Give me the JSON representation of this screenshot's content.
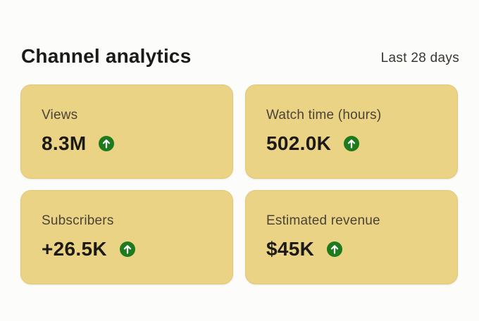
{
  "header": {
    "title": "Channel analytics",
    "date_range": "Last 28 days"
  },
  "metrics": [
    {
      "label": "Views",
      "value": "8.3M",
      "trend": "up"
    },
    {
      "label": "Watch time (hours)",
      "value": "502.0K",
      "trend": "up"
    },
    {
      "label": "Subscribers",
      "value": "+26.5K",
      "trend": "up"
    },
    {
      "label": "Estimated revenue",
      "value": "$45K",
      "trend": "up"
    }
  ],
  "colors": {
    "card_background": "#ebd385",
    "trend_up": "#1d7a1d",
    "text_primary": "#1c1a16"
  },
  "icons": {
    "trend_up": "arrow-up-circle-icon"
  }
}
